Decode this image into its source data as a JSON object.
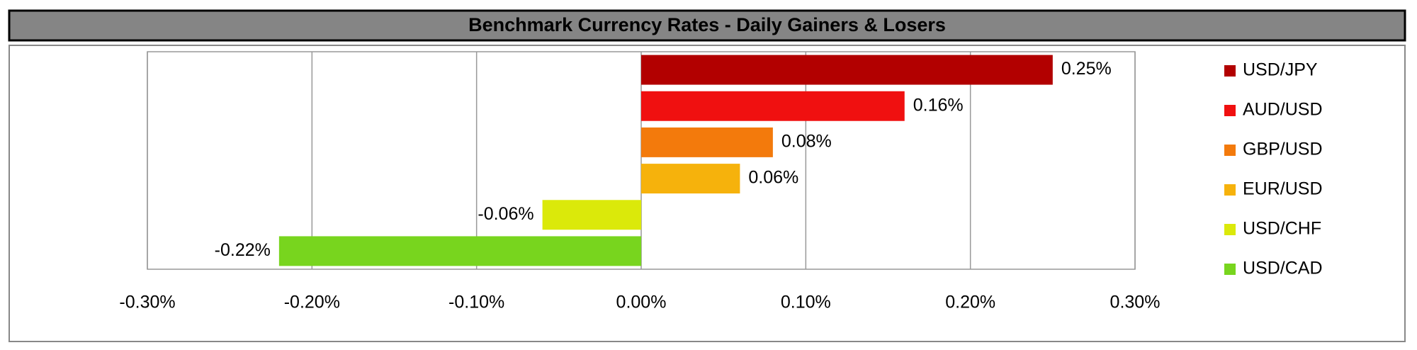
{
  "chart_data": {
    "type": "hbar",
    "title": "Benchmark Currency Rates - Daily Gainers & Losers",
    "categories": [
      "USD/JPY",
      "AUD/USD",
      "GBP/USD",
      "EUR/USD",
      "USD/CHF",
      "USD/CAD"
    ],
    "values": [
      0.25,
      0.16,
      0.08,
      0.06,
      -0.06,
      -0.22
    ],
    "value_labels": [
      "0.25%",
      "0.16%",
      "0.08%",
      "0.06%",
      "-0.06%",
      "-0.22%"
    ],
    "colors": [
      "#b20000",
      "#f01010",
      "#f37a0c",
      "#f6b20c",
      "#dbe90a",
      "#78d51e"
    ],
    "xlim": [
      -0.3,
      0.3
    ],
    "xticks": [
      {
        "value": -0.3,
        "label": "-0.30%"
      },
      {
        "value": -0.2,
        "label": "-0.20%"
      },
      {
        "value": -0.1,
        "label": "-0.10%"
      },
      {
        "value": 0,
        "label": "0.00%"
      },
      {
        "value": 0.1,
        "label": "0.10%"
      },
      {
        "value": 0.2,
        "label": "0.20%"
      },
      {
        "value": 0.3,
        "label": "0.30%"
      }
    ],
    "grid": true,
    "legend": "right"
  }
}
